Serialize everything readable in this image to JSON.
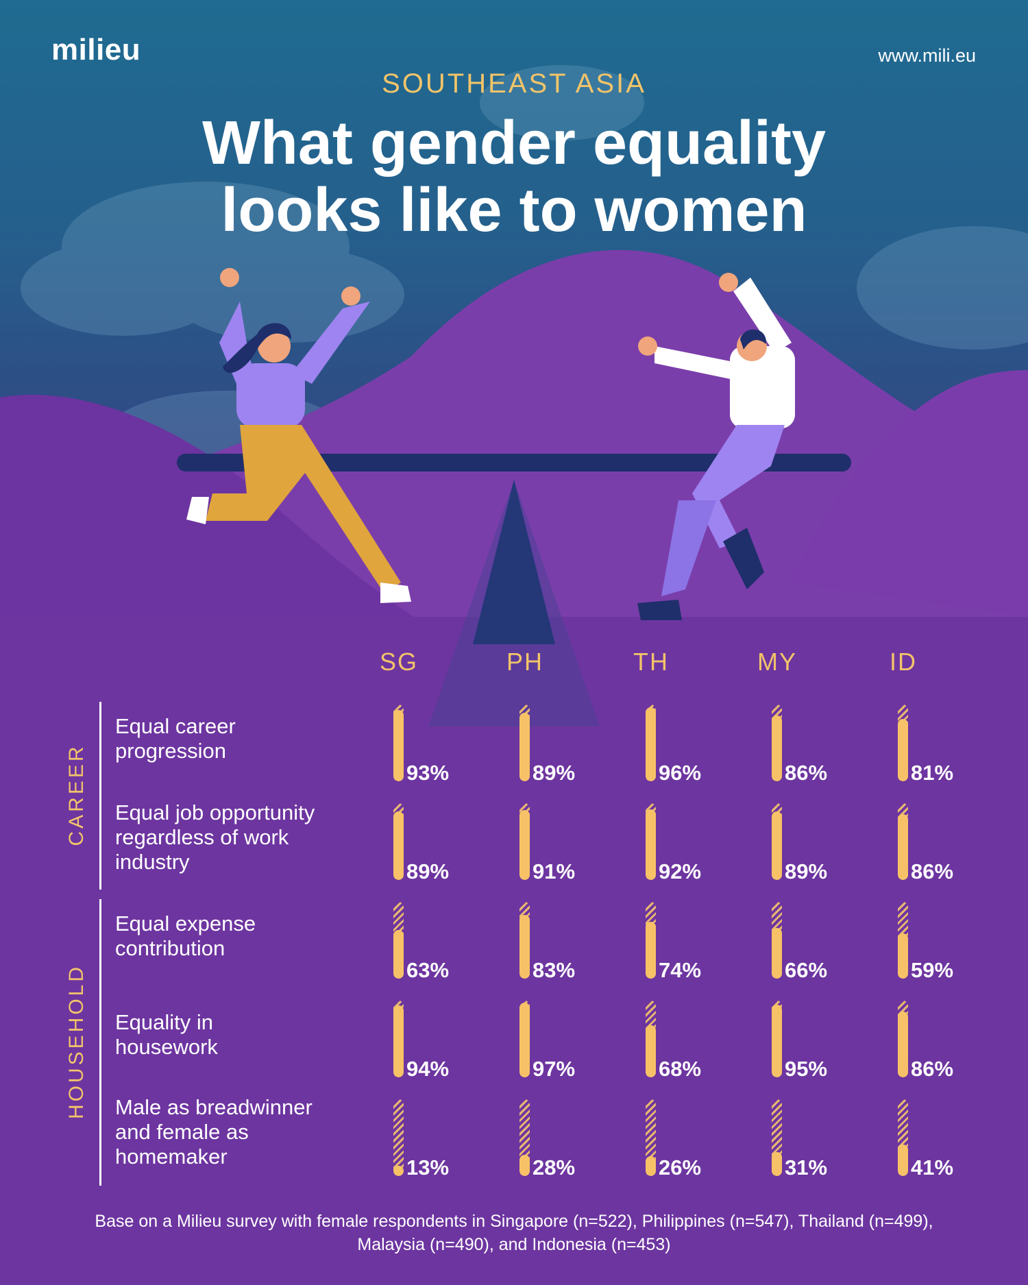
{
  "header": {
    "logo": "milieu",
    "url": "www.mili.eu",
    "kicker": "SOUTHEAST ASIA",
    "title_line1": "What gender equality",
    "title_line2": "looks like to women"
  },
  "colors": {
    "bar": "#f7c267",
    "accent_text": "#f2c46a",
    "background_top": "#1f6b91",
    "background_bottom": "#6b359f"
  },
  "chart_data": {
    "type": "bar",
    "title": "What gender equality looks like to women",
    "categories": [
      "SG",
      "PH",
      "TH",
      "MY",
      "ID"
    ],
    "unit": "%",
    "ylim": [
      0,
      100
    ],
    "groups": [
      {
        "name": "CAREER",
        "rows": [
          {
            "label": "Equal career\nprogression",
            "values": [
              93,
              89,
              96,
              86,
              81
            ]
          },
          {
            "label": "Equal job opportunity\nregardless of work\nindustry",
            "values": [
              89,
              91,
              92,
              89,
              86
            ]
          }
        ]
      },
      {
        "name": "HOUSEHOLD",
        "rows": [
          {
            "label": "Equal expense\ncontribution",
            "values": [
              63,
              83,
              74,
              66,
              59
            ]
          },
          {
            "label": "Equality in\nhousework",
            "values": [
              94,
              97,
              68,
              95,
              86
            ]
          },
          {
            "label": "Male as breadwinner\nand female as\nhomemaker",
            "values": [
              13,
              28,
              26,
              31,
              41
            ]
          }
        ]
      }
    ]
  },
  "footnote": "Base on a Milieu survey with female respondents in Singapore (n=522), Philippines (n=547), Thailand (n=499), Malaysia (n=490), and Indonesia (n=453)"
}
